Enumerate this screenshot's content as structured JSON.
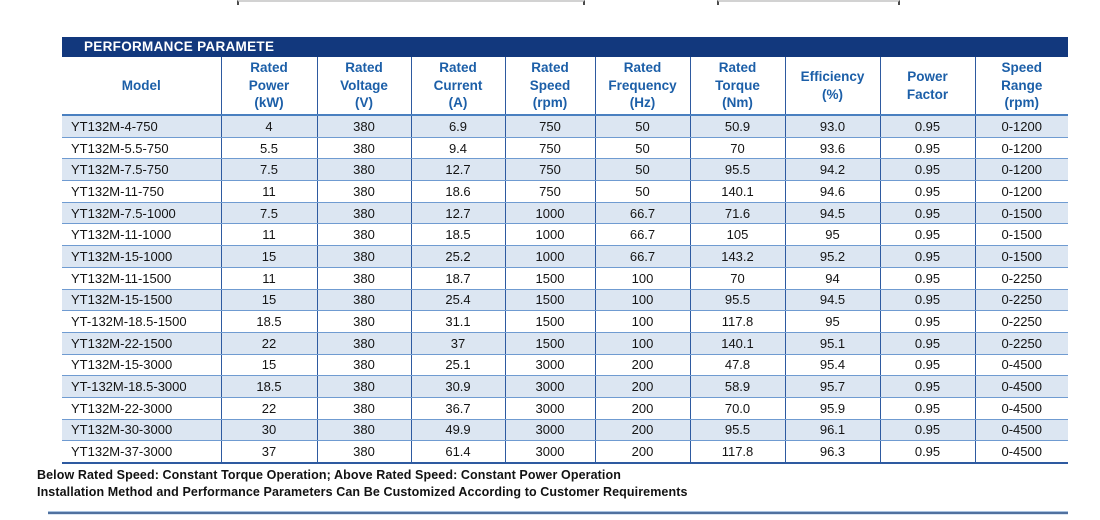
{
  "table": {
    "title": "PERFORMANCE PARAMETE",
    "columns": [
      "Model",
      "Rated\nPower\n(kW)",
      "Rated\nVoltage\n(V)",
      "Rated\nCurrent\n(A)",
      "Rated\nSpeed\n(rpm)",
      "Rated\nFrequency\n(Hz)",
      "Rated\nTorque\n(Nm)",
      "Efficiency\n(%)",
      "Power\nFactor",
      "Speed\nRange\n(rpm)"
    ],
    "rows": [
      [
        "YT132M-4-750",
        "4",
        "380",
        "6.9",
        "750",
        "50",
        "50.9",
        "93.0",
        "0.95",
        "0-1200"
      ],
      [
        "YT132M-5.5-750",
        "5.5",
        "380",
        "9.4",
        "750",
        "50",
        "70",
        "93.6",
        "0.95",
        "0-1200"
      ],
      [
        "YT132M-7.5-750",
        "7.5",
        "380",
        "12.7",
        "750",
        "50",
        "95.5",
        "94.2",
        "0.95",
        "0-1200"
      ],
      [
        "YT132M-11-750",
        "11",
        "380",
        "18.6",
        "750",
        "50",
        "140.1",
        "94.6",
        "0.95",
        "0-1200"
      ],
      [
        "YT132M-7.5-1000",
        "7.5",
        "380",
        "12.7",
        "1000",
        "66.7",
        "71.6",
        "94.5",
        "0.95",
        "0-1500"
      ],
      [
        "YT132M-11-1000",
        "11",
        "380",
        "18.5",
        "1000",
        "66.7",
        "105",
        "95",
        "0.95",
        "0-1500"
      ],
      [
        "YT132M-15-1000",
        "15",
        "380",
        "25.2",
        "1000",
        "66.7",
        "143.2",
        "95.2",
        "0.95",
        "0-1500"
      ],
      [
        "YT132M-11-1500",
        "11",
        "380",
        "18.7",
        "1500",
        "100",
        "70",
        "94",
        "0.95",
        "0-2250"
      ],
      [
        "YT132M-15-1500",
        "15",
        "380",
        "25.4",
        "1500",
        "100",
        "95.5",
        "94.5",
        "0.95",
        "0-2250"
      ],
      [
        "YT-132M-18.5-1500",
        "18.5",
        "380",
        "31.1",
        "1500",
        "100",
        "117.8",
        "95",
        "0.95",
        "0-2250"
      ],
      [
        "YT132M-22-1500",
        "22",
        "380",
        "37",
        "1500",
        "100",
        "140.1",
        "95.1",
        "0.95",
        "0-2250"
      ],
      [
        "YT132M-15-3000",
        "15",
        "380",
        "25.1",
        "3000",
        "200",
        "47.8",
        "95.4",
        "0.95",
        "0-4500"
      ],
      [
        "YT-132M-18.5-3000",
        "18.5",
        "380",
        "30.9",
        "3000",
        "200",
        "58.9",
        "95.7",
        "0.95",
        "0-4500"
      ],
      [
        "YT132M-22-3000",
        "22",
        "380",
        "36.7",
        "3000",
        "200",
        "70.0",
        "95.9",
        "0.95",
        "0-4500"
      ],
      [
        "YT132M-30-3000",
        "30",
        "380",
        "49.9",
        "3000",
        "200",
        "95.5",
        "96.1",
        "0.95",
        "0-4500"
      ],
      [
        "YT132M-37-3000",
        "37",
        "380",
        "61.4",
        "3000",
        "200",
        "117.8",
        "96.3",
        "0.95",
        "0-4500"
      ]
    ]
  },
  "notes": {
    "line1": "Below Rated Speed: Constant Torque Operation; Above Rated Speed: Constant Power Operation",
    "line2": "Installation Method and Performance Parameters Can Be Customized According to Customer Requirements"
  },
  "colors": {
    "title_bar_bg": "#12387d",
    "title_text": "#ffffff",
    "header_text": "#1c5fa8",
    "row_shade": "#dce6f2",
    "grid_vertical": "#2e5aa0",
    "grid_horizontal": "#6f9bd1",
    "bottom_rule": "#50719f"
  }
}
